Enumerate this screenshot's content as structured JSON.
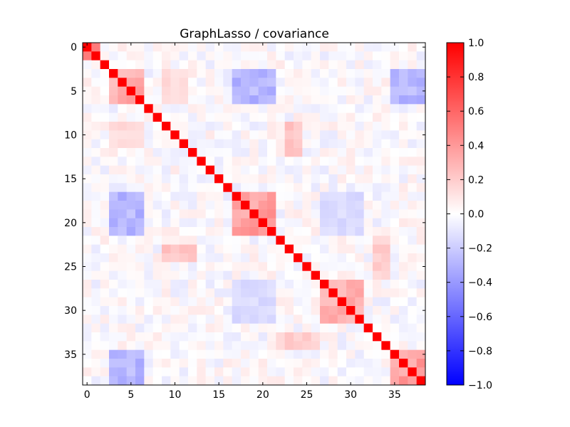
{
  "chart_data": {
    "type": "heatmap",
    "title": "GraphLasso / covariance",
    "n": 39,
    "x_ticks": [
      0,
      5,
      10,
      15,
      20,
      25,
      30,
      35
    ],
    "y_ticks": [
      0,
      5,
      10,
      15,
      20,
      25,
      30,
      35
    ],
    "colormap": "bwr",
    "colors": {
      "low": "#0000ff",
      "mid": "#ffffff",
      "high": "#ff0000"
    },
    "vmin": -1.0,
    "vmax": 1.0,
    "colorbar_ticks": [
      "1.0",
      "0.8",
      "0.6",
      "0.4",
      "0.2",
      "0.0",
      "−0.2",
      "−0.4",
      "−0.6",
      "−0.8",
      "−1.0"
    ],
    "colorbar_tick_values": [
      1.0,
      0.8,
      0.6,
      0.4,
      0.2,
      0.0,
      -0.2,
      -0.4,
      -0.6,
      -0.8,
      -1.0
    ],
    "diagonal_value": 1.0,
    "blocks": [
      {
        "rows": [
          0,
          1
        ],
        "cols": [
          0,
          1
        ],
        "value": 0.7
      },
      {
        "rows": [
          3,
          6
        ],
        "cols": [
          3,
          6
        ],
        "value": 0.35
      },
      {
        "rows": [
          17,
          21
        ],
        "cols": [
          17,
          21
        ],
        "value": 0.4
      },
      {
        "rows": [
          27,
          31
        ],
        "cols": [
          27,
          31
        ],
        "value": 0.35
      },
      {
        "rows": [
          35,
          38
        ],
        "cols": [
          35,
          38
        ],
        "value": 0.4
      }
    ],
    "cross_blocks": [
      {
        "rows": [
          3,
          6
        ],
        "cols": [
          17,
          21
        ],
        "value": -0.3
      },
      {
        "rows": [
          3,
          6
        ],
        "cols": [
          35,
          38
        ],
        "value": -0.3
      },
      {
        "rows": [
          17,
          21
        ],
        "cols": [
          27,
          31
        ],
        "value": -0.15
      },
      {
        "rows": [
          9,
          11
        ],
        "cols": [
          3,
          6
        ],
        "value": 0.15
      },
      {
        "rows": [
          23,
          24
        ],
        "cols": [
          9,
          12
        ],
        "value": 0.25
      },
      {
        "rows": [
          33,
          34
        ],
        "cols": [
          22,
          26
        ],
        "value": 0.2
      }
    ]
  }
}
